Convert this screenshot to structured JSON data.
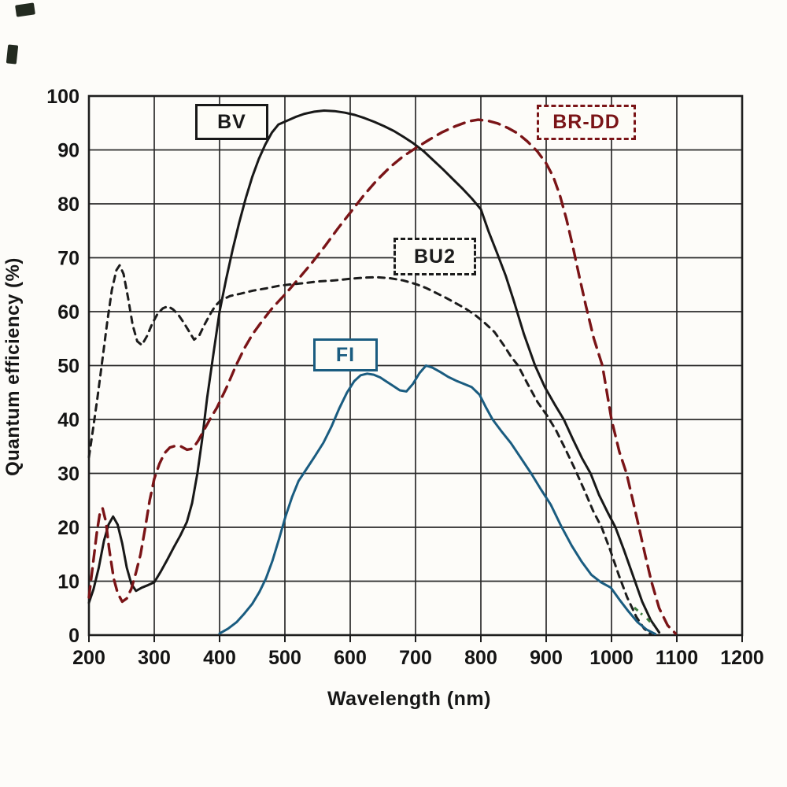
{
  "chart_data": {
    "type": "line",
    "title": "",
    "xlabel": "Wavelength (nm)",
    "ylabel": "Quantum efficiency (%)",
    "xlim": [
      200,
      1200
    ],
    "ylim": [
      0,
      100
    ],
    "grid": true,
    "x_ticks": [
      200,
      300,
      400,
      500,
      600,
      700,
      800,
      900,
      1000,
      1100,
      1200
    ],
    "y_ticks": [
      0,
      10,
      20,
      30,
      40,
      50,
      60,
      70,
      80,
      90,
      100
    ],
    "axis_color": "#1e1e1e",
    "grid_color": "#2b2b2b",
    "series": [
      {
        "name": "BV",
        "color": "#181818",
        "line_style": "solid",
        "label_box_style": "solid",
        "points": [
          [
            200,
            6
          ],
          [
            207,
            8.5
          ],
          [
            215,
            12.5
          ],
          [
            223,
            17.5
          ],
          [
            230,
            20.5
          ],
          [
            237,
            22
          ],
          [
            244,
            20.5
          ],
          [
            251,
            17
          ],
          [
            258,
            12.5
          ],
          [
            265,
            9.5
          ],
          [
            272,
            8.2
          ],
          [
            281,
            8.8
          ],
          [
            291,
            9.3
          ],
          [
            300,
            9.8
          ],
          [
            310,
            11.8
          ],
          [
            320,
            14
          ],
          [
            330,
            16.3
          ],
          [
            340,
            18.5
          ],
          [
            350,
            21
          ],
          [
            358,
            24.5
          ],
          [
            366,
            30
          ],
          [
            373,
            36
          ],
          [
            381,
            44
          ],
          [
            391,
            52.5
          ],
          [
            400,
            60
          ],
          [
            410,
            66
          ],
          [
            420,
            71.5
          ],
          [
            430,
            76.5
          ],
          [
            440,
            81
          ],
          [
            450,
            85
          ],
          [
            460,
            88.3
          ],
          [
            470,
            91
          ],
          [
            480,
            93.2
          ],
          [
            490,
            94.7
          ],
          [
            503,
            95.4
          ],
          [
            516,
            96.1
          ],
          [
            530,
            96.7
          ],
          [
            545,
            97.1
          ],
          [
            560,
            97.3
          ],
          [
            576,
            97.2
          ],
          [
            592,
            96.9
          ],
          [
            607,
            96.5
          ],
          [
            622,
            95.9
          ],
          [
            637,
            95.2
          ],
          [
            652,
            94.4
          ],
          [
            667,
            93.5
          ],
          [
            682,
            92.4
          ],
          [
            697,
            91.2
          ],
          [
            712,
            89.8
          ],
          [
            727,
            88.1
          ],
          [
            742,
            86.4
          ],
          [
            757,
            84.6
          ],
          [
            772,
            82.8
          ],
          [
            786,
            81
          ],
          [
            800,
            79
          ],
          [
            812,
            74.8
          ],
          [
            825,
            70.8
          ],
          [
            838,
            66.7
          ],
          [
            851,
            61.8
          ],
          [
            866,
            55.8
          ],
          [
            883,
            50
          ],
          [
            898,
            46
          ],
          [
            913,
            42.8
          ],
          [
            927,
            40
          ],
          [
            941,
            36.3
          ],
          [
            955,
            32.8
          ],
          [
            968,
            30
          ],
          [
            981,
            26
          ],
          [
            994,
            22.8
          ],
          [
            1006,
            20
          ],
          [
            1019,
            15.8
          ],
          [
            1033,
            11
          ],
          [
            1047,
            6.2
          ],
          [
            1060,
            2.8
          ],
          [
            1073,
            0.5
          ]
        ]
      },
      {
        "name": "BR-DD",
        "color": "#7a1417",
        "line_style": "dashed",
        "label_box_style": "dashed",
        "points": [
          [
            200,
            7
          ],
          [
            206,
            13
          ],
          [
            212,
            19
          ],
          [
            217,
            22.8
          ],
          [
            221,
            23.5
          ],
          [
            226,
            21
          ],
          [
            231,
            16
          ],
          [
            238,
            10.5
          ],
          [
            244,
            7.8
          ],
          [
            251,
            6.2
          ],
          [
            258,
            6.8
          ],
          [
            265,
            8.6
          ],
          [
            272,
            11.6
          ],
          [
            279,
            15
          ],
          [
            286,
            19.8
          ],
          [
            293,
            25
          ],
          [
            300,
            29
          ],
          [
            308,
            31.8
          ],
          [
            316,
            33.8
          ],
          [
            324,
            34.8
          ],
          [
            332,
            35.1
          ],
          [
            341,
            35
          ],
          [
            350,
            34.4
          ],
          [
            359,
            34.6
          ],
          [
            367,
            36
          ],
          [
            376,
            38
          ],
          [
            386,
            40.2
          ],
          [
            396,
            42.2
          ],
          [
            411,
            46
          ],
          [
            425,
            50
          ],
          [
            438,
            53.2
          ],
          [
            451,
            55.9
          ],
          [
            466,
            58.4
          ],
          [
            481,
            60.7
          ],
          [
            501,
            63.3
          ],
          [
            521,
            66.1
          ],
          [
            541,
            69
          ],
          [
            561,
            72.1
          ],
          [
            581,
            75.4
          ],
          [
            601,
            78.5
          ],
          [
            621,
            81.6
          ],
          [
            641,
            84.4
          ],
          [
            661,
            86.8
          ],
          [
            681,
            88.8
          ],
          [
            701,
            90.4
          ],
          [
            721,
            91.9
          ],
          [
            741,
            93.3
          ],
          [
            761,
            94.4
          ],
          [
            781,
            95.3
          ],
          [
            796,
            95.6
          ],
          [
            811,
            95.4
          ],
          [
            826,
            94.9
          ],
          [
            841,
            94.1
          ],
          [
            856,
            93.1
          ],
          [
            871,
            91.6
          ],
          [
            886,
            89.8
          ],
          [
            900,
            87.5
          ],
          [
            911,
            85
          ],
          [
            921,
            81.6
          ],
          [
            931,
            77.2
          ],
          [
            941,
            72
          ],
          [
            951,
            66.4
          ],
          [
            961,
            61
          ],
          [
            973,
            55
          ],
          [
            986,
            50
          ],
          [
            1000,
            40
          ],
          [
            1012,
            34
          ],
          [
            1023,
            30
          ],
          [
            1033,
            24.8
          ],
          [
            1042,
            20
          ],
          [
            1052,
            14.6
          ],
          [
            1061,
            10
          ],
          [
            1073,
            5
          ],
          [
            1086,
            1.8
          ],
          [
            1098,
            0.3
          ]
        ]
      },
      {
        "name": "BU2",
        "color": "#1c1c1c",
        "line_style": "dashed-fine",
        "label_box_style": "dashed",
        "points": [
          [
            200,
            33
          ],
          [
            206,
            38
          ],
          [
            213,
            44
          ],
          [
            220,
            50.5
          ],
          [
            228,
            58
          ],
          [
            235,
            64
          ],
          [
            242,
            67.7
          ],
          [
            247,
            68.6
          ],
          [
            253,
            67
          ],
          [
            260,
            62.5
          ],
          [
            267,
            57.5
          ],
          [
            274,
            54.5
          ],
          [
            281,
            53.8
          ],
          [
            289,
            55.5
          ],
          [
            297,
            57.8
          ],
          [
            305,
            59.6
          ],
          [
            313,
            60.6
          ],
          [
            321,
            61
          ],
          [
            329,
            60.4
          ],
          [
            337,
            59.4
          ],
          [
            345,
            58
          ],
          [
            353,
            56.4
          ],
          [
            361,
            54.8
          ],
          [
            369,
            55.6
          ],
          [
            377,
            57.6
          ],
          [
            385,
            59.4
          ],
          [
            393,
            61
          ],
          [
            401,
            62
          ],
          [
            416,
            62.9
          ],
          [
            431,
            63.3
          ],
          [
            451,
            63.9
          ],
          [
            471,
            64.3
          ],
          [
            491,
            64.8
          ],
          [
            511,
            65.1
          ],
          [
            531,
            65.3
          ],
          [
            551,
            65.6
          ],
          [
            576,
            65.8
          ],
          [
            601,
            66.1
          ],
          [
            621,
            66.3
          ],
          [
            641,
            66.4
          ],
          [
            661,
            66.2
          ],
          [
            681,
            65.8
          ],
          [
            701,
            65.1
          ],
          [
            716,
            64.4
          ],
          [
            731,
            63.5
          ],
          [
            746,
            62.6
          ],
          [
            761,
            61.6
          ],
          [
            776,
            60.6
          ],
          [
            791,
            59.4
          ],
          [
            806,
            57.9
          ],
          [
            821,
            56.2
          ],
          [
            836,
            53.6
          ],
          [
            846,
            51.7
          ],
          [
            857,
            50
          ],
          [
            872,
            46.5
          ],
          [
            887,
            43.2
          ],
          [
            902,
            40.6
          ],
          [
            915,
            38
          ],
          [
            929,
            34.6
          ],
          [
            944,
            30.8
          ],
          [
            958,
            27
          ],
          [
            972,
            23
          ],
          [
            985,
            20
          ],
          [
            998,
            15.8
          ],
          [
            1011,
            11.2
          ],
          [
            1024,
            7
          ],
          [
            1038,
            3.4
          ],
          [
            1050,
            1.2
          ],
          [
            1060,
            0.2
          ]
        ]
      },
      {
        "name": "FI",
        "color": "#1a5c80",
        "line_style": "solid",
        "label_box_style": "solid",
        "points": [
          [
            400,
            0.3
          ],
          [
            413,
            1.2
          ],
          [
            426,
            2.4
          ],
          [
            438,
            4
          ],
          [
            450,
            5.8
          ],
          [
            461,
            8
          ],
          [
            471,
            10.5
          ],
          [
            481,
            13.8
          ],
          [
            491,
            17.8
          ],
          [
            501,
            22
          ],
          [
            511,
            25.6
          ],
          [
            521,
            28.6
          ],
          [
            533,
            30.8
          ],
          [
            546,
            33.2
          ],
          [
            559,
            35.7
          ],
          [
            571,
            38.6
          ],
          [
            583,
            42
          ],
          [
            595,
            45
          ],
          [
            606,
            47.1
          ],
          [
            616,
            48.2
          ],
          [
            626,
            48.5
          ],
          [
            636,
            48.3
          ],
          [
            646,
            47.8
          ],
          [
            656,
            47
          ],
          [
            666,
            46.2
          ],
          [
            676,
            45.4
          ],
          [
            686,
            45.2
          ],
          [
            696,
            46.6
          ],
          [
            706,
            48.6
          ],
          [
            716,
            50
          ],
          [
            726,
            49.6
          ],
          [
            738,
            48.8
          ],
          [
            750,
            47.9
          ],
          [
            762,
            47.2
          ],
          [
            774,
            46.6
          ],
          [
            786,
            46
          ],
          [
            798,
            44.6
          ],
          [
            808,
            42.2
          ],
          [
            818,
            40
          ],
          [
            831,
            37.9
          ],
          [
            846,
            35.6
          ],
          [
            861,
            32.9
          ],
          [
            877,
            30
          ],
          [
            892,
            27
          ],
          [
            907,
            24.2
          ],
          [
            923,
            20.2
          ],
          [
            939,
            16.6
          ],
          [
            954,
            13.7
          ],
          [
            969,
            11.2
          ],
          [
            984,
            9.8
          ],
          [
            999,
            8.8
          ],
          [
            1012,
            6.6
          ],
          [
            1026,
            4.4
          ],
          [
            1040,
            2.4
          ],
          [
            1054,
            1
          ],
          [
            1067,
            0.2
          ]
        ]
      }
    ],
    "annotations": [
      {
        "series": "BV",
        "label": "BV"
      },
      {
        "series": "BR-DD",
        "label": "BR-DD"
      },
      {
        "series": "BU2",
        "label": "BU2"
      },
      {
        "series": "FI",
        "label": "FI"
      }
    ]
  }
}
